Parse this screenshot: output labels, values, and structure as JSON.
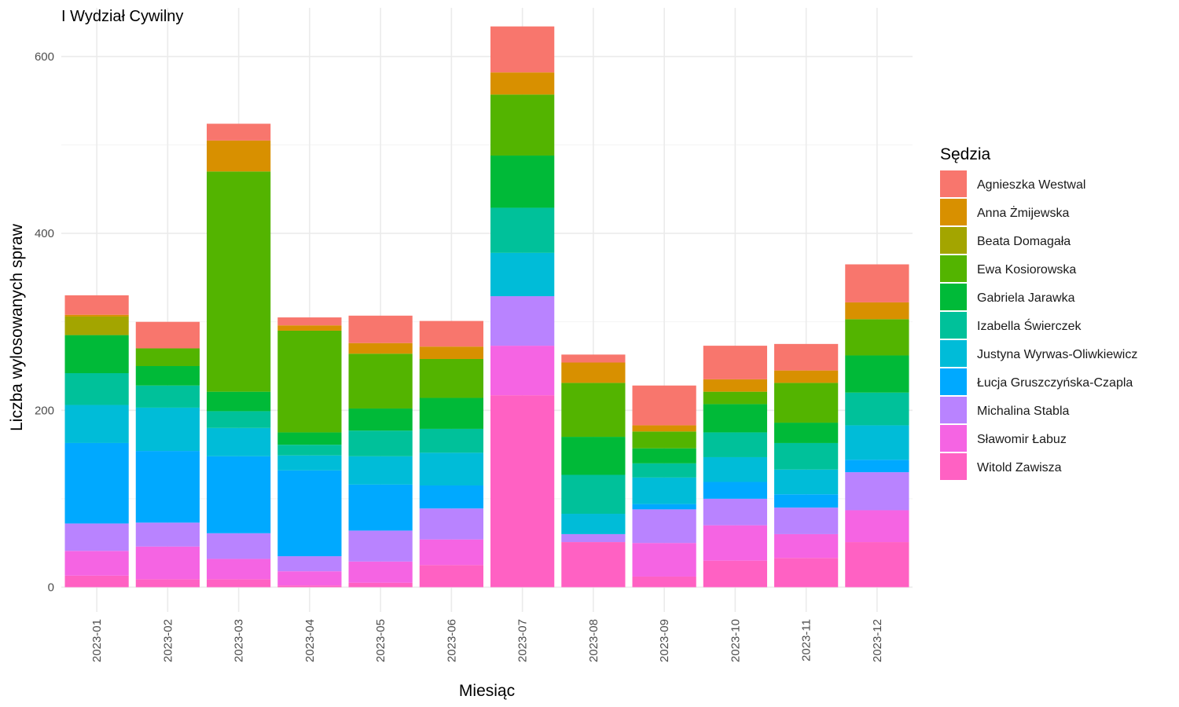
{
  "chart_data": {
    "type": "bar",
    "stacked": true,
    "title": "I Wydział Cywilny",
    "xlabel": "Miesiąc",
    "ylabel": "Liczba wylosowanych spraw",
    "ylim": [
      -28,
      655
    ],
    "yticks": [
      0,
      200,
      400,
      600
    ],
    "grid": true,
    "legend_title": "Sędzia",
    "legend_position": "right",
    "categories": [
      "2023-01",
      "2023-02",
      "2023-03",
      "2023-04",
      "2023-05",
      "2023-06",
      "2023-07",
      "2023-08",
      "2023-09",
      "2023-10",
      "2023-11",
      "2023-12"
    ],
    "series": [
      {
        "name": "Witold Zawisza",
        "color": "#FF61C3",
        "values": [
          13,
          9,
          9,
          2,
          5,
          25,
          217,
          51,
          12,
          30,
          33,
          51
        ]
      },
      {
        "name": "Sławomir Łabuz",
        "color": "#F564E3",
        "values": [
          28,
          37,
          23,
          16,
          24,
          29,
          56,
          0,
          38,
          40,
          27,
          36
        ]
      },
      {
        "name": "Michalina Stabla",
        "color": "#B983FF",
        "values": [
          31,
          27,
          29,
          17,
          35,
          35,
          56,
          9,
          38,
          30,
          30,
          43
        ]
      },
      {
        "name": "Łucja Gruszczyńska-Czapla",
        "color": "#00A9FF",
        "values": [
          91,
          81,
          87,
          97,
          52,
          26,
          0,
          0,
          6,
          19,
          15,
          14
        ]
      },
      {
        "name": "Justyna Wyrwas-Oliwkiewicz",
        "color": "#00BCD8",
        "values": [
          43,
          49,
          32,
          17,
          32,
          37,
          49,
          23,
          30,
          28,
          28,
          39
        ]
      },
      {
        "name": "Izabella Świerczek",
        "color": "#00C19A",
        "values": [
          36,
          25,
          19,
          12,
          29,
          27,
          51,
          44,
          16,
          28,
          30,
          37
        ]
      },
      {
        "name": "Gabriela Jarawka",
        "color": "#00BA38",
        "values": [
          43,
          22,
          22,
          14,
          25,
          35,
          59,
          43,
          17,
          32,
          23,
          42
        ]
      },
      {
        "name": "Ewa Kosiorowska",
        "color": "#53B400",
        "values": [
          0,
          20,
          249,
          115,
          62,
          44,
          69,
          61,
          19,
          14,
          45,
          41
        ]
      },
      {
        "name": "Beata Domagała",
        "color": "#A3A500",
        "values": [
          21,
          0,
          0,
          0,
          0,
          0,
          0,
          0,
          0,
          0,
          0,
          0
        ]
      },
      {
        "name": "Anna Żmijewska",
        "color": "#D89000",
        "values": [
          2,
          0,
          35,
          6,
          12,
          14,
          25,
          23,
          7,
          14,
          14,
          19
        ]
      },
      {
        "name": "Agnieszka Westwal",
        "color": "#F8766D",
        "values": [
          22,
          30,
          19,
          9,
          31,
          29,
          52,
          9,
          45,
          38,
          30,
          43
        ]
      }
    ]
  }
}
